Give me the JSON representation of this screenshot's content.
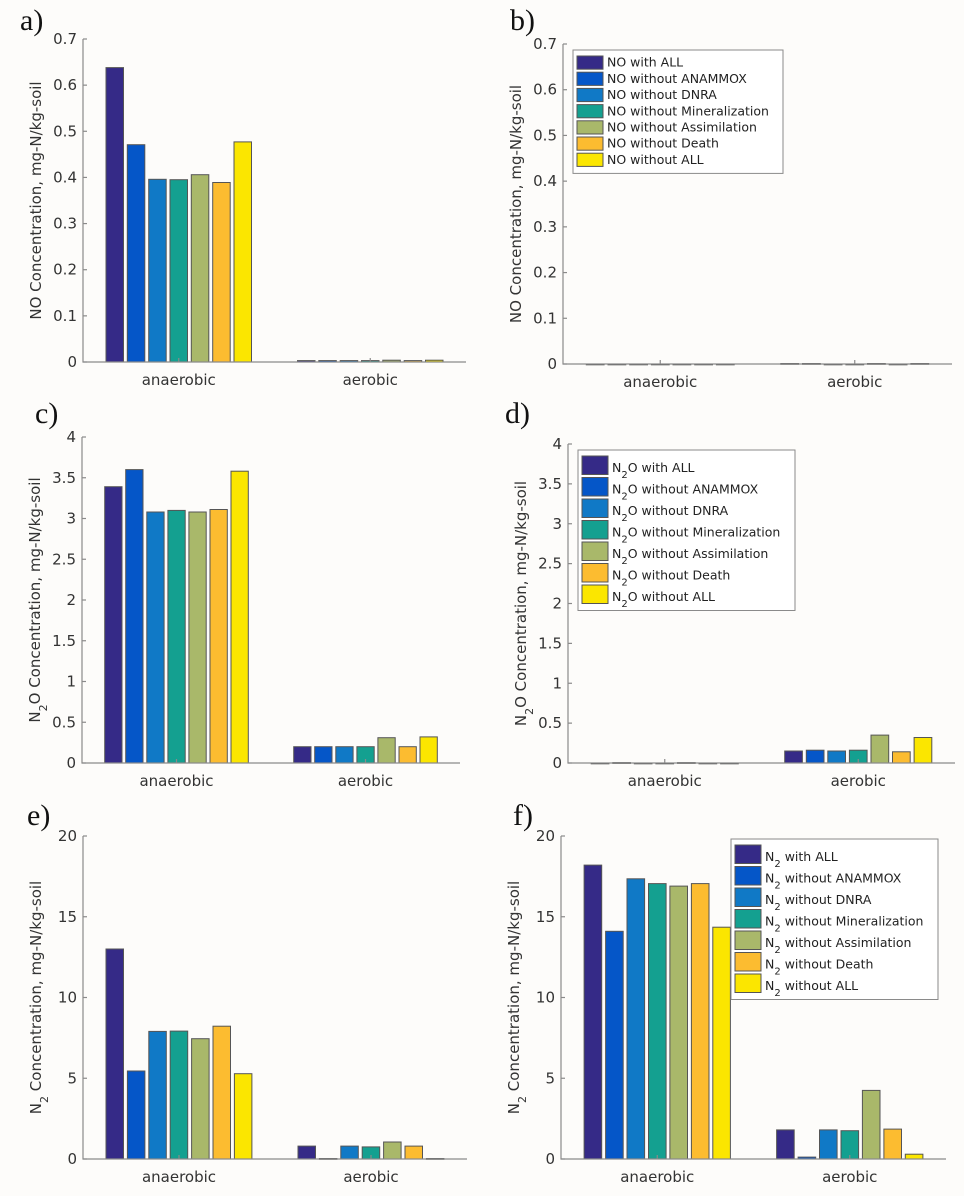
{
  "series_colors": [
    "#352a87",
    "#0556c8",
    "#1079c6",
    "#14a090",
    "#a9b86a",
    "#fcbc30",
    "#fbe600"
  ],
  "chart_data": [
    {
      "panel": "a)",
      "type": "bar",
      "categories": [
        "anaerobic",
        "aerobic"
      ],
      "ylabel": "NO Concentration, mg-N/kg-soil",
      "ylabel_sub": null,
      "ylim": [
        0,
        0.7
      ],
      "yticks": [
        "0",
        "0.1",
        "0.2",
        "0.3",
        "0.4",
        "0.5",
        "0.6",
        "0.7"
      ],
      "ytick_values": [
        0,
        0.1,
        0.2,
        0.3,
        0.4,
        0.5,
        0.6,
        0.7
      ],
      "legend": null,
      "series": [
        {
          "name": "NO with ALL",
          "values": [
            0.638,
            0.003
          ]
        },
        {
          "name": "NO without ANAMMOX",
          "values": [
            0.471,
            0.003
          ]
        },
        {
          "name": "NO without DNRA",
          "values": [
            0.396,
            0.003
          ]
        },
        {
          "name": "NO without Mineralization",
          "values": [
            0.395,
            0.003
          ]
        },
        {
          "name": "NO without Assimilation",
          "values": [
            0.406,
            0.004
          ]
        },
        {
          "name": "NO without Death",
          "values": [
            0.389,
            0.003
          ]
        },
        {
          "name": "NO without ALL",
          "values": [
            0.477,
            0.004
          ]
        }
      ]
    },
    {
      "panel": "b)",
      "type": "bar",
      "categories": [
        "anaerobic",
        "aerobic"
      ],
      "ylabel": "NO Concentration, mg-N/kg-soil",
      "ylabel_sub": null,
      "ylim": [
        0,
        0.7
      ],
      "yticks": [
        "0",
        "0.1",
        "0.2",
        "0.3",
        "0.4",
        "0.5",
        "0.6",
        "0.7"
      ],
      "ytick_values": [
        0,
        0.1,
        0.2,
        0.3,
        0.4,
        0.5,
        0.6,
        0.7
      ],
      "legend": "top-left",
      "legend_prefix": "NO",
      "legend_prefix_sub": null,
      "series": [
        {
          "name": "NO with ALL",
          "suffix": " with ALL",
          "values": [
            0.0,
            0.001
          ]
        },
        {
          "name": "NO without ANAMMOX",
          "suffix": " without ANAMMOX",
          "values": [
            0.0,
            0.001
          ]
        },
        {
          "name": "NO without DNRA",
          "suffix": " without DNRA",
          "values": [
            0.0,
            0.0
          ]
        },
        {
          "name": "NO without Mineralization",
          "suffix": " without Mineralization",
          "values": [
            0.0,
            0.0
          ]
        },
        {
          "name": "NO without Assimilation",
          "suffix": " without Assimilation",
          "values": [
            0.0,
            0.001
          ]
        },
        {
          "name": "NO without Death",
          "suffix": " without Death",
          "values": [
            0.0,
            0.0
          ]
        },
        {
          "name": "NO without ALL",
          "suffix": " without ALL",
          "values": [
            0.0,
            0.001
          ]
        }
      ]
    },
    {
      "panel": "c)",
      "type": "bar",
      "categories": [
        "anaerobic",
        "aerobic"
      ],
      "ylabel": "O Concentration, mg-N/kg-soil",
      "ylabel_prefix": "N",
      "ylabel_sub": "2",
      "ylim": [
        0,
        4
      ],
      "yticks": [
        "0",
        "0.5",
        "1",
        "1.5",
        "2",
        "2.5",
        "3",
        "3.5",
        "4"
      ],
      "ytick_values": [
        0,
        0.5,
        1,
        1.5,
        2,
        2.5,
        3,
        3.5,
        4
      ],
      "legend": null,
      "series": [
        {
          "name": "N2O with ALL",
          "values": [
            3.39,
            0.2
          ]
        },
        {
          "name": "N2O without ANAMMOX",
          "values": [
            3.6,
            0.2
          ]
        },
        {
          "name": "N2O without DNRA",
          "values": [
            3.08,
            0.2
          ]
        },
        {
          "name": "N2O without Mineralization",
          "values": [
            3.1,
            0.2
          ]
        },
        {
          "name": "N2O without Assimilation",
          "values": [
            3.08,
            0.31
          ]
        },
        {
          "name": "N2O without Death",
          "values": [
            3.11,
            0.2
          ]
        },
        {
          "name": "N2O without ALL",
          "values": [
            3.58,
            0.32
          ]
        }
      ]
    },
    {
      "panel": "d)",
      "type": "bar",
      "categories": [
        "anaerobic",
        "aerobic"
      ],
      "ylabel": "O Concentration, mg-N/kg-soil",
      "ylabel_prefix": "N",
      "ylabel_sub": "2",
      "ylim": [
        0,
        4
      ],
      "yticks": [
        "0",
        "0.5",
        "1",
        "1.5",
        "2",
        "2.5",
        "3",
        "3.5",
        "4"
      ],
      "ytick_values": [
        0,
        0.5,
        1,
        1.5,
        2,
        2.5,
        3,
        3.5,
        4
      ],
      "legend": "top-left",
      "legend_prefix": "N",
      "legend_prefix_sub": "2",
      "legend_prefix_after": "O",
      "series": [
        {
          "name": "N2O with ALL",
          "suffix": " with ALL",
          "values": [
            0.0,
            0.15
          ]
        },
        {
          "name": "N2O without ANAMMOX",
          "suffix": " without ANAMMOX",
          "values": [
            0.005,
            0.16
          ]
        },
        {
          "name": "N2O without DNRA",
          "suffix": " without DNRA",
          "values": [
            0.0,
            0.15
          ]
        },
        {
          "name": "N2O without Mineralization",
          "suffix": " without Mineralization",
          "values": [
            0.0,
            0.16
          ]
        },
        {
          "name": "N2O without Assimilation",
          "suffix": " without Assimilation",
          "values": [
            0.005,
            0.35
          ]
        },
        {
          "name": "N2O without Death",
          "suffix": " without Death",
          "values": [
            0.0,
            0.14
          ]
        },
        {
          "name": "N2O without ALL",
          "suffix": " without ALL",
          "values": [
            0.0,
            0.32
          ]
        }
      ]
    },
    {
      "panel": "e)",
      "type": "bar",
      "categories": [
        "anaerobic",
        "aerobic"
      ],
      "ylabel": " Concentration, mg-N/kg-soil",
      "ylabel_prefix": "N",
      "ylabel_sub": "2",
      "ylim": [
        0,
        20
      ],
      "yticks": [
        "0",
        "5",
        "10",
        "15",
        "20"
      ],
      "ytick_values": [
        0,
        5,
        10,
        15,
        20
      ],
      "legend": null,
      "series": [
        {
          "name": "N2 with ALL",
          "values": [
            13.0,
            0.8
          ]
        },
        {
          "name": "N2 without ANAMMOX",
          "values": [
            5.45,
            0.03
          ]
        },
        {
          "name": "N2 without DNRA",
          "values": [
            7.9,
            0.8
          ]
        },
        {
          "name": "N2 without Mineralization",
          "values": [
            7.92,
            0.75
          ]
        },
        {
          "name": "N2 without Assimilation",
          "values": [
            7.45,
            1.05
          ]
        },
        {
          "name": "N2 without Death",
          "values": [
            8.22,
            0.8
          ]
        },
        {
          "name": "N2 without ALL",
          "values": [
            5.28,
            0.03
          ]
        }
      ]
    },
    {
      "panel": "f)",
      "type": "bar",
      "categories": [
        "anaerobic",
        "aerobic"
      ],
      "ylabel": " Concentration, mg-N/kg-soil",
      "ylabel_prefix": "N",
      "ylabel_sub": "2",
      "ylim": [
        0,
        20
      ],
      "yticks": [
        "0",
        "5",
        "10",
        "15",
        "20"
      ],
      "ytick_values": [
        0,
        5,
        10,
        15,
        20
      ],
      "legend": "top-right",
      "legend_prefix": "N",
      "legend_prefix_sub": "2",
      "legend_prefix_after": "",
      "series": [
        {
          "name": "N2 with ALL",
          "suffix": " with ALL",
          "values": [
            18.2,
            1.8
          ]
        },
        {
          "name": "N2 without ANAMMOX",
          "suffix": " without ANAMMOX",
          "values": [
            14.1,
            0.12
          ]
        },
        {
          "name": "N2 without DNRA",
          "suffix": " without DNRA",
          "values": [
            17.35,
            1.8
          ]
        },
        {
          "name": "N2 without Mineralization",
          "suffix": " without Mineralization",
          "values": [
            17.05,
            1.75
          ]
        },
        {
          "name": "N2 without Assimilation",
          "suffix": " without Assimilation",
          "values": [
            16.9,
            4.25
          ]
        },
        {
          "name": "N2 without Death",
          "suffix": " without Death",
          "values": [
            17.05,
            1.85
          ]
        },
        {
          "name": "N2 without ALL",
          "suffix": " without ALL",
          "values": [
            14.35,
            0.3
          ]
        }
      ]
    }
  ]
}
